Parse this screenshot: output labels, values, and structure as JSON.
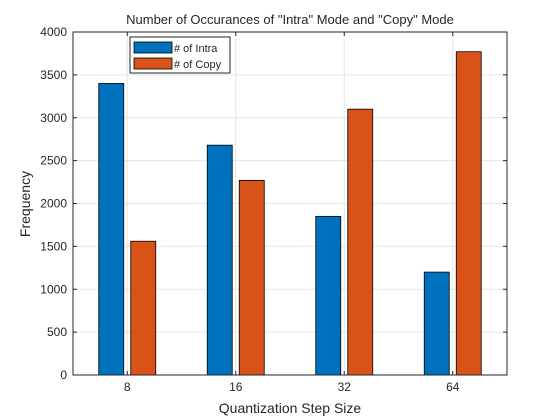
{
  "chart_data": {
    "type": "bar",
    "title": "Number of Occurances of \"Intra\" Mode and \"Copy\" Mode",
    "xlabel": "Quantization Step Size",
    "ylabel": "Frequency",
    "categories": [
      "8",
      "16",
      "32",
      "64"
    ],
    "ylim": [
      0,
      4000
    ],
    "yticks": [
      0,
      500,
      1000,
      1500,
      2000,
      2500,
      3000,
      3500,
      4000
    ],
    "grid": true,
    "legend_position": "top-left",
    "series": [
      {
        "name": "# of Intra",
        "values": [
          3400,
          2680,
          1850,
          1200
        ],
        "color": "#0072BD"
      },
      {
        "name": "# of Copy",
        "values": [
          1560,
          2270,
          3100,
          3770
        ],
        "color": "#D95319"
      }
    ]
  }
}
